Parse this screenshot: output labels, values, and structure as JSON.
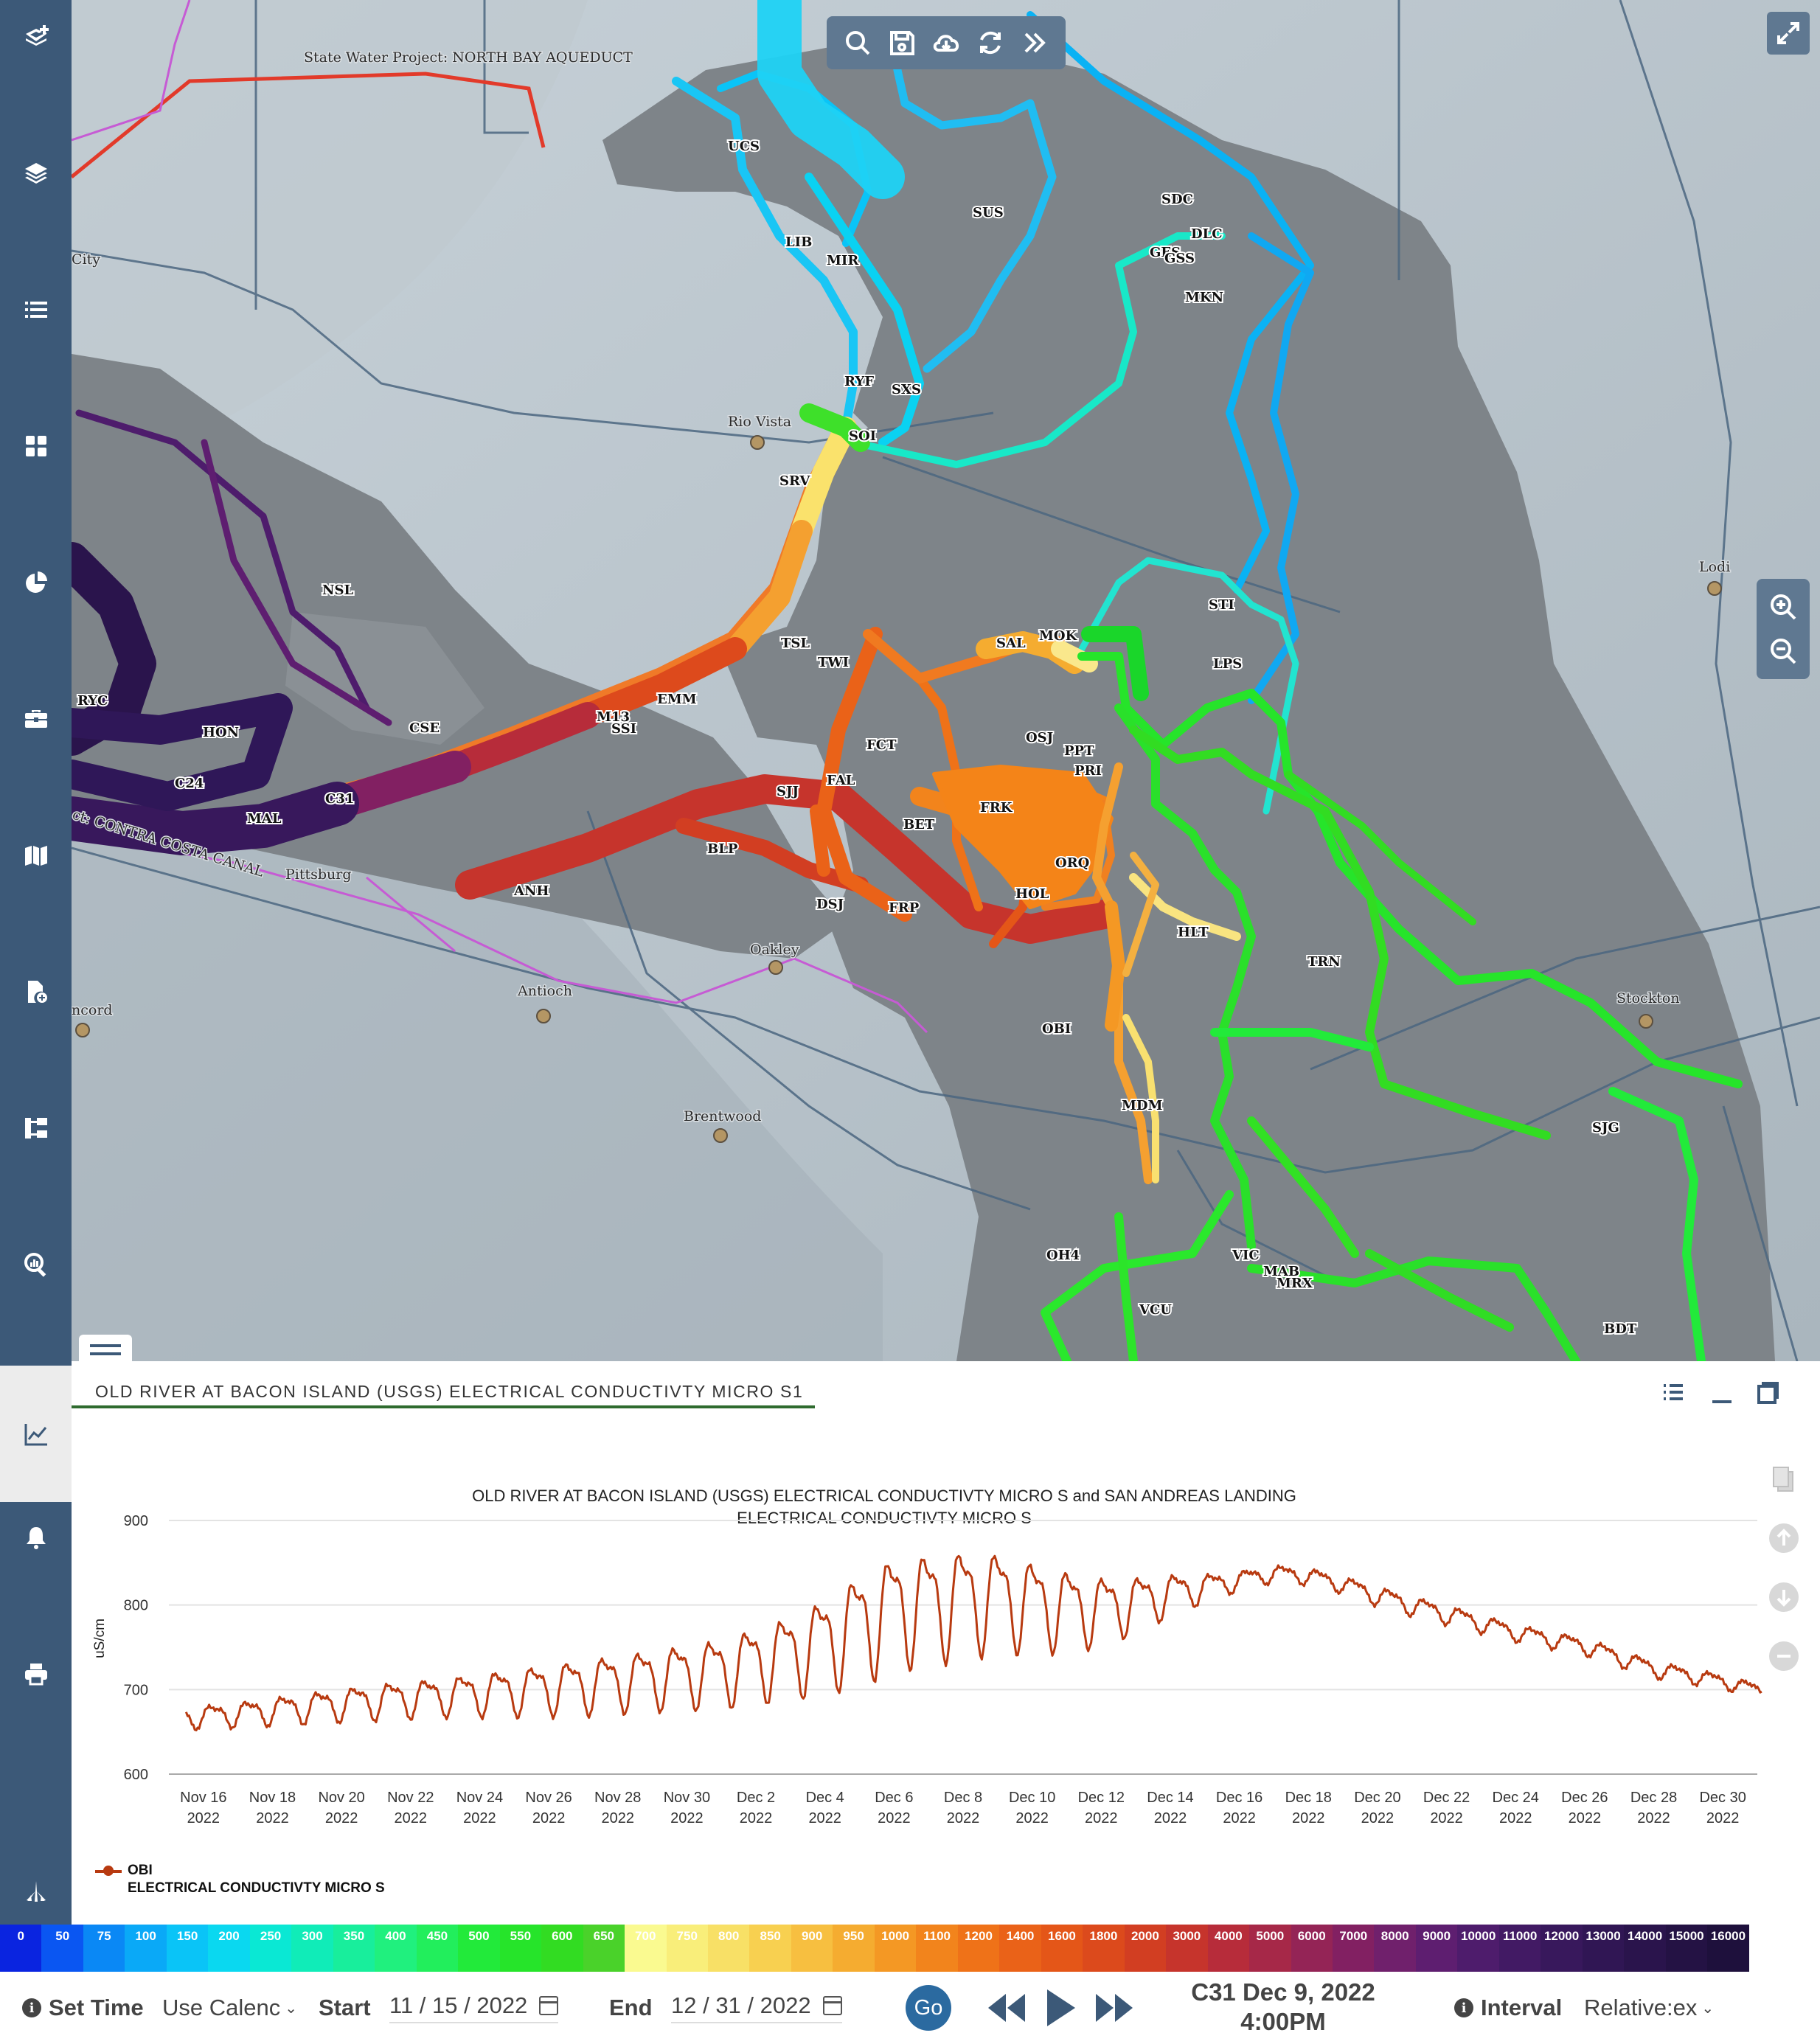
{
  "sidebar": {
    "items": [
      {
        "icon": "layers-plus-icon"
      },
      {
        "icon": "layers-icon"
      },
      {
        "icon": "list-icon"
      },
      {
        "icon": "dashboard-icon"
      },
      {
        "icon": "pie-chart-icon"
      },
      {
        "icon": "toolbox-icon"
      },
      {
        "icon": "map-icon"
      },
      {
        "icon": "add-file-icon"
      },
      {
        "icon": "hierarchy-icon"
      },
      {
        "icon": "chart-search-icon"
      },
      {
        "icon": "line-chart-icon",
        "active": true
      },
      {
        "icon": "bell-icon"
      },
      {
        "icon": "print-icon"
      },
      {
        "icon": "logo-icon"
      }
    ]
  },
  "map": {
    "toolbar": [
      "search-icon",
      "save-icon",
      "cloud-download-icon",
      "refresh-icon",
      "double-chevron-right-icon"
    ],
    "places": [
      {
        "label": "State Water Project: NORTH BAY AQUEDUCT"
      },
      {
        "label": "City"
      },
      {
        "label": "Rio Vista"
      },
      {
        "label": "Lodi"
      },
      {
        "label": "Pittsburg"
      },
      {
        "label": "Oakley"
      },
      {
        "label": "Antioch"
      },
      {
        "label": "ncord"
      },
      {
        "label": "Brentwood"
      },
      {
        "label": "Stockton"
      },
      {
        "label": "ct: CONTRA COSTA CANAL"
      }
    ],
    "stations": [
      "UCS",
      "LIB",
      "MIR",
      "SUS",
      "SDC",
      "DLC",
      "GES",
      "GSS",
      "MKN",
      "RYF",
      "SXS",
      "SOI",
      "SRV",
      "NSL",
      "STI",
      "TSL",
      "TWI",
      "MOK",
      "SAL",
      "LPS",
      "EMM",
      "M13",
      "SSI",
      "RYC",
      "HON",
      "CSE",
      "FCT",
      "OSJ",
      "PPT",
      "PRI",
      "C24",
      "FAL",
      "SJJ",
      "FRK",
      "BET",
      "MAL",
      "C31",
      "BLP",
      "ORQ",
      "ANH",
      "HOL",
      "DSJ",
      "FRP",
      "HLT",
      "TRN",
      "OBI",
      "MDM",
      "SJG",
      "OH4",
      "VIC",
      "MAB",
      "MRX",
      "VCU",
      "BDT"
    ]
  },
  "panel": {
    "tab_title": "OLD RIVER AT BACON ISLAND (USGS) ELECTRICAL CONDUCTIVTY MICRO S1"
  },
  "chart_data": {
    "type": "line",
    "title": "OLD RIVER AT BACON ISLAND (USGS) ELECTRICAL CONDUCTIVTY MICRO S and SAN ANDREAS LANDING ELECTRICAL CONDUCTIVTY MICRO S",
    "title_lines": [
      "OLD RIVER AT BACON ISLAND (USGS) ELECTRICAL CONDUCTIVTY MICRO S and SAN ANDREAS LANDING",
      "ELECTRICAL CONDUCTIVTY MICRO S"
    ],
    "xlabel": "",
    "ylabel": "uS/cm",
    "ylim": [
      600,
      900
    ],
    "yticks": [
      600,
      700,
      800,
      900
    ],
    "xrange": [
      "2022-11-15",
      "2022-12-31"
    ],
    "xticks": [
      {
        "date": "2022-11-16",
        "l1": "Nov 16",
        "l2": "2022"
      },
      {
        "date": "2022-11-18",
        "l1": "Nov 18",
        "l2": "2022"
      },
      {
        "date": "2022-11-20",
        "l1": "Nov 20",
        "l2": "2022"
      },
      {
        "date": "2022-11-22",
        "l1": "Nov 22",
        "l2": "2022"
      },
      {
        "date": "2022-11-24",
        "l1": "Nov 24",
        "l2": "2022"
      },
      {
        "date": "2022-11-26",
        "l1": "Nov 26",
        "l2": "2022"
      },
      {
        "date": "2022-11-28",
        "l1": "Nov 28",
        "l2": "2022"
      },
      {
        "date": "2022-11-30",
        "l1": "Nov 30",
        "l2": "2022"
      },
      {
        "date": "2022-12-02",
        "l1": "Dec 2",
        "l2": "2022"
      },
      {
        "date": "2022-12-04",
        "l1": "Dec 4",
        "l2": "2022"
      },
      {
        "date": "2022-12-06",
        "l1": "Dec 6",
        "l2": "2022"
      },
      {
        "date": "2022-12-08",
        "l1": "Dec 8",
        "l2": "2022"
      },
      {
        "date": "2022-12-10",
        "l1": "Dec 10",
        "l2": "2022"
      },
      {
        "date": "2022-12-12",
        "l1": "Dec 12",
        "l2": "2022"
      },
      {
        "date": "2022-12-14",
        "l1": "Dec 14",
        "l2": "2022"
      },
      {
        "date": "2022-12-16",
        "l1": "Dec 16",
        "l2": "2022"
      },
      {
        "date": "2022-12-18",
        "l1": "Dec 18",
        "l2": "2022"
      },
      {
        "date": "2022-12-20",
        "l1": "Dec 20",
        "l2": "2022"
      },
      {
        "date": "2022-12-22",
        "l1": "Dec 22",
        "l2": "2022"
      },
      {
        "date": "2022-12-24",
        "l1": "Dec 24",
        "l2": "2022"
      },
      {
        "date": "2022-12-26",
        "l1": "Dec 26",
        "l2": "2022"
      },
      {
        "date": "2022-12-28",
        "l1": "Dec 28",
        "l2": "2022"
      },
      {
        "date": "2022-12-30",
        "l1": "Dec 30",
        "l2": "2022"
      }
    ],
    "grid": true,
    "legend": "bottom-left",
    "series": [
      {
        "name": "OBI",
        "color": "#b83a10",
        "x": [
          "2022-11-15",
          "2022-11-17",
          "2022-11-19",
          "2022-11-21",
          "2022-11-23",
          "2022-11-25",
          "2022-11-27",
          "2022-11-29",
          "2022-12-01",
          "2022-12-03",
          "2022-12-04",
          "2022-12-05",
          "2022-12-06",
          "2022-12-07",
          "2022-12-08",
          "2022-12-09",
          "2022-12-10",
          "2022-12-11",
          "2022-12-12",
          "2022-12-13",
          "2022-12-14",
          "2022-12-15",
          "2022-12-16",
          "2022-12-17",
          "2022-12-18",
          "2022-12-19",
          "2022-12-20",
          "2022-12-21",
          "2022-12-22",
          "2022-12-24",
          "2022-12-26",
          "2022-12-28",
          "2022-12-30",
          "2022-12-31"
        ],
        "mean": [
          666,
          672,
          680,
          688,
          694,
          700,
          707,
          716,
          725,
          745,
          760,
          780,
          800,
          805,
          810,
          812,
          805,
          800,
          798,
          805,
          815,
          822,
          830,
          838,
          835,
          825,
          812,
          800,
          790,
          768,
          752,
          725,
          710,
          700
        ],
        "range": [
          15,
          18,
          22,
          26,
          28,
          34,
          40,
          44,
          50,
          60,
          68,
          80,
          82,
          80,
          78,
          72,
          66,
          58,
          50,
          40,
          30,
          20,
          14,
          12,
          12,
          12,
          14,
          14,
          14,
          12,
          12,
          12,
          10,
          10
        ]
      }
    ]
  },
  "legend": {
    "name": "OBI",
    "parameter": "ELECTRICAL CONDUCTIVTY MICRO S"
  },
  "color_scale": {
    "labels": [
      "0",
      "50",
      "75",
      "100",
      "150",
      "200",
      "250",
      "300",
      "350",
      "400",
      "450",
      "500",
      "550",
      "600",
      "650",
      "700",
      "750",
      "800",
      "850",
      "900",
      "950",
      "1000",
      "1100",
      "1200",
      "1400",
      "1600",
      "1800",
      "2000",
      "3000",
      "4000",
      "5000",
      "6000",
      "7000",
      "8000",
      "9000",
      "10000",
      "11000",
      "12000",
      "13000",
      "14000",
      "15000",
      "16000"
    ],
    "colors": [
      "#0a24e0",
      "#0a56f2",
      "#0a88f5",
      "#0aa9f7",
      "#0ac4f7",
      "#0ad8f0",
      "#0ae8d4",
      "#10ecb8",
      "#18ee9c",
      "#20f07e",
      "#22ee5c",
      "#22ea3a",
      "#26e42a",
      "#32dc22",
      "#4ad22a",
      "#fafa90",
      "#f9ee7a",
      "#f8e066",
      "#f8d050",
      "#f7bf40",
      "#f5ac30",
      "#f49824",
      "#f2841c",
      "#ef7218",
      "#ea6218",
      "#e45618",
      "#dc4a1c",
      "#d23e22",
      "#c6342c",
      "#b72c3a",
      "#a62848",
      "#942456",
      "#822062",
      "#70206c",
      "#5e1e70",
      "#4e1c6c",
      "#421a64",
      "#38185c",
      "#301654",
      "#2a144c",
      "#241244",
      "#1e103c"
    ]
  },
  "timebar": {
    "set_time_label": "Set Time",
    "set_time_value": "Use Calenc",
    "start_label": "Start",
    "start_value": "11 / 15 / 2022",
    "end_label": "End",
    "end_value": "12 / 31 / 2022",
    "go_label": "Go",
    "current_station": "C31 Dec 9, 2022",
    "current_time": "4:00PM",
    "interval_label": "Interval",
    "interval_value": "Relative:ex"
  }
}
